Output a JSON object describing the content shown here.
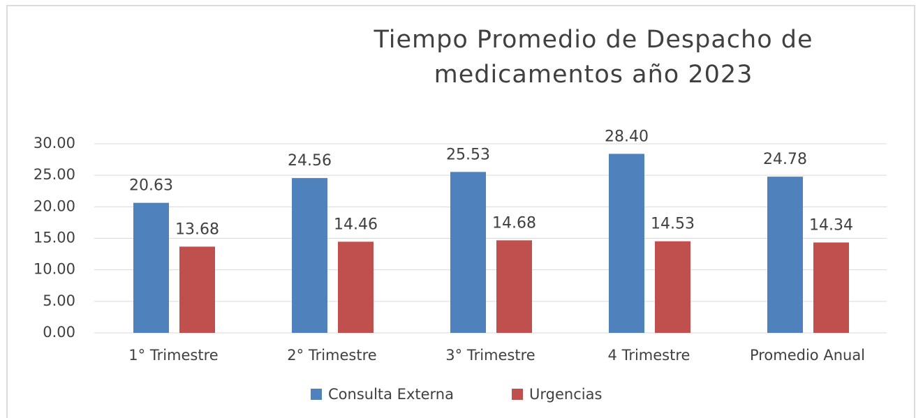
{
  "chart_data": {
    "type": "bar",
    "title": "Tiempo Promedio de Despacho de medicamentos año 2023",
    "categories": [
      "1° Trimestre",
      "2° Trimestre",
      "3° Trimestre",
      "4 Trimestre",
      "Promedio Anual"
    ],
    "series": [
      {
        "name": "Consulta Externa",
        "color": "#4f81bd",
        "values": [
          20.63,
          24.56,
          25.53,
          28.4,
          24.78
        ],
        "value_labels": [
          "20.63",
          "24.56",
          "25.53",
          "28.40",
          "24.78"
        ]
      },
      {
        "name": "Urgencias",
        "color": "#c0504d",
        "values": [
          13.68,
          14.46,
          14.68,
          14.53,
          14.34
        ],
        "value_labels": [
          "13.68",
          "14.46",
          "14.68",
          "14.53",
          "14.34"
        ]
      }
    ],
    "ylim": [
      0,
      30
    ],
    "yticks": [
      {
        "value": 0,
        "label": "0.00"
      },
      {
        "value": 5,
        "label": "5.00"
      },
      {
        "value": 10,
        "label": "10.00"
      },
      {
        "value": 15,
        "label": "15.00"
      },
      {
        "value": 20,
        "label": "20.00"
      },
      {
        "value": 25,
        "label": "25.00"
      },
      {
        "value": 30,
        "label": "30.00"
      }
    ],
    "grid": true,
    "legend": "bottom"
  }
}
